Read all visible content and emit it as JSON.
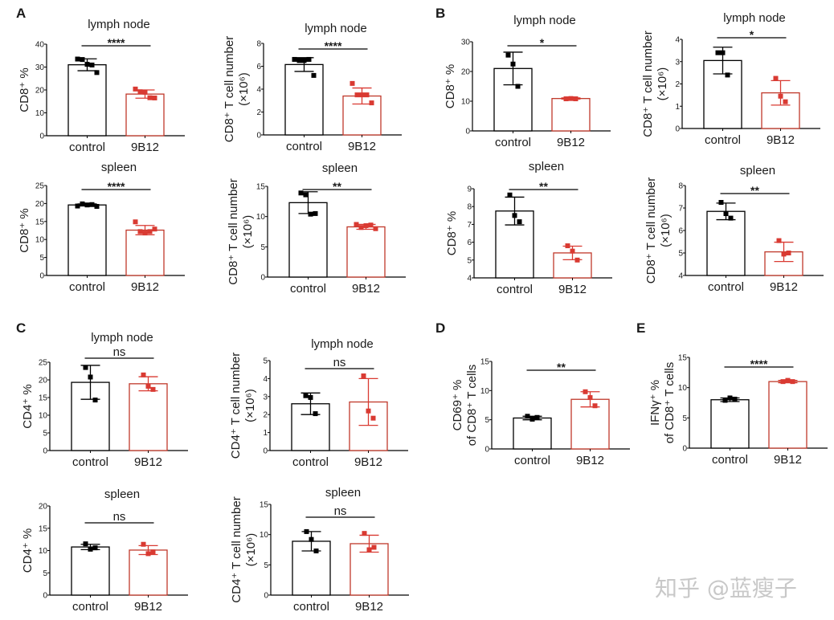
{
  "panel_labels": [
    "A",
    "B",
    "C",
    "D",
    "E"
  ],
  "watermark": "知乎 @蓝瘦子",
  "colors": {
    "control": "#000000",
    "treated": "#d93a32",
    "treated_bar": "#c0392b"
  },
  "chart_data": [
    {
      "type": "bar",
      "panel": "A",
      "title": "lymph node",
      "ylabel": [
        "CD8⁺ %"
      ],
      "ylim": [
        0,
        40
      ],
      "yticks": [
        0,
        10,
        20,
        30,
        40
      ],
      "categories": [
        "control",
        "9B12"
      ],
      "series": [
        {
          "mean": 31,
          "sd": 2.6,
          "points": [
            33.5,
            33.3,
            31.2,
            30.9,
            27.6
          ]
        },
        {
          "mean": 18.2,
          "sd": 1.8,
          "points": [
            20.4,
            19.2,
            19.0,
            16.6,
            16.5
          ]
        }
      ],
      "significance": "****"
    },
    {
      "type": "bar",
      "panel": "A",
      "title": "lymph node",
      "ylabel": [
        "CD8⁺ T cell number",
        "(×10⁶)"
      ],
      "ylim": [
        0,
        8
      ],
      "yticks": [
        0,
        2,
        4,
        6,
        8
      ],
      "categories": [
        "control",
        "9B12"
      ],
      "series": [
        {
          "mean": 6.15,
          "sd": 0.6,
          "points": [
            6.6,
            6.5,
            6.5,
            6.6,
            5.2
          ]
        },
        {
          "mean": 3.4,
          "sd": 0.7,
          "points": [
            4.5,
            3.5,
            3.5,
            3.5,
            2.8
          ]
        }
      ],
      "significance": "****"
    },
    {
      "type": "bar",
      "panel": "A",
      "title": "spleen",
      "ylabel": [
        "CD8⁺ %"
      ],
      "ylim": [
        0,
        25
      ],
      "yticks": [
        0,
        5,
        10,
        15,
        20,
        25
      ],
      "categories": [
        "control",
        "9B12"
      ],
      "series": [
        {
          "mean": 19.6,
          "sd": 0.3,
          "points": [
            19.3,
            19.9,
            19.6,
            19.7,
            19.2
          ]
        },
        {
          "mean": 12.6,
          "sd": 1.3,
          "points": [
            14.9,
            12.2,
            11.8,
            12.2,
            12.9
          ]
        }
      ],
      "significance": "****"
    },
    {
      "type": "bar",
      "panel": "A",
      "title": "spleen",
      "ylabel": [
        "CD8⁺ T cell number",
        "(×10⁶)"
      ],
      "ylim": [
        0,
        15
      ],
      "yticks": [
        0,
        5,
        10,
        15
      ],
      "categories": [
        "control",
        "9B12"
      ],
      "series": [
        {
          "mean": 12.3,
          "sd": 1.8,
          "points": [
            13.9,
            13.6,
            10.4,
            10.5
          ]
        },
        {
          "mean": 8.3,
          "sd": 0.4,
          "points": [
            8.7,
            8.2,
            8.5,
            8.6,
            8.0
          ]
        }
      ],
      "significance": "**"
    },
    {
      "type": "bar",
      "panel": "B",
      "title": "lymph node",
      "ylabel": [
        "CD8⁺ %"
      ],
      "ylim": [
        0,
        30
      ],
      "yticks": [
        0,
        10,
        20,
        30
      ],
      "categories": [
        "control",
        "9B12"
      ],
      "series": [
        {
          "mean": 21,
          "sd": 5.5,
          "points": [
            25.5,
            22.5,
            15
          ]
        },
        {
          "mean": 10.9,
          "sd": 0.2,
          "points": [
            10.8,
            10.9,
            10.8
          ]
        }
      ],
      "significance": "*"
    },
    {
      "type": "bar",
      "panel": "B",
      "title": "lymph node",
      "ylabel": [
        "CD8⁺ T cell number",
        "(×10⁶)"
      ],
      "ylim": [
        0,
        4
      ],
      "yticks": [
        0,
        1,
        2,
        3,
        4
      ],
      "categories": [
        "control",
        "9B12"
      ],
      "series": [
        {
          "mean": 3.05,
          "sd": 0.6,
          "points": [
            3.4,
            3.4,
            2.4
          ]
        },
        {
          "mean": 1.6,
          "sd": 0.55,
          "points": [
            2.25,
            1.45,
            1.2
          ]
        }
      ],
      "significance": "*"
    },
    {
      "type": "bar",
      "panel": "B",
      "title": "spleen",
      "ylabel": [
        "CD8⁺ %"
      ],
      "ylim": [
        4,
        9
      ],
      "yticks": [
        4,
        5,
        6,
        7,
        8,
        9
      ],
      "categories": [
        "control",
        "9B12"
      ],
      "series": [
        {
          "mean": 7.75,
          "sd": 0.78,
          "points": [
            8.65,
            7.5,
            7.15
          ]
        },
        {
          "mean": 5.4,
          "sd": 0.38,
          "points": [
            5.8,
            5.5,
            5.0
          ]
        }
      ],
      "significance": "**"
    },
    {
      "type": "bar",
      "panel": "B",
      "title": "spleen",
      "ylabel": [
        "CD8⁺ T cell number",
        "(×10⁶)"
      ],
      "ylim": [
        4,
        8
      ],
      "yticks": [
        4,
        5,
        6,
        7,
        8
      ],
      "categories": [
        "control",
        "9B12"
      ],
      "series": [
        {
          "mean": 6.85,
          "sd": 0.37,
          "points": [
            7.25,
            6.75,
            6.55
          ]
        },
        {
          "mean": 5.05,
          "sd": 0.43,
          "points": [
            5.55,
            4.95,
            5.0
          ]
        }
      ],
      "significance": "**"
    },
    {
      "type": "bar",
      "panel": "C",
      "title": "lymph node",
      "ylabel": [
        "CD4⁺ %"
      ],
      "ylim": [
        0,
        25
      ],
      "yticks": [
        0,
        5,
        10,
        15,
        20,
        25
      ],
      "categories": [
        "control",
        "9B12"
      ],
      "series": [
        {
          "mean": 19.3,
          "sd": 4.8,
          "points": [
            23.5,
            20.8,
            14.3
          ]
        },
        {
          "mean": 18.9,
          "sd": 2.0,
          "points": [
            21.4,
            18.2,
            17.3
          ]
        }
      ],
      "significance": "ns"
    },
    {
      "type": "bar",
      "panel": "C",
      "title": "lymph node",
      "ylabel": [
        "CD4⁺ T cell number",
        "(×10⁶)"
      ],
      "ylim": [
        0,
        5
      ],
      "yticks": [
        0,
        1,
        2,
        3,
        4,
        5
      ],
      "categories": [
        "control",
        "9B12"
      ],
      "series": [
        {
          "mean": 2.6,
          "sd": 0.6,
          "points": [
            3.05,
            2.95,
            2.05
          ]
        },
        {
          "mean": 2.7,
          "sd": 1.3,
          "points": [
            4.15,
            2.2,
            1.8
          ]
        }
      ],
      "significance": "ns"
    },
    {
      "type": "bar",
      "panel": "C",
      "title": "spleen",
      "ylabel": [
        "CD4⁺ %"
      ],
      "ylim": [
        0,
        20
      ],
      "yticks": [
        0,
        5,
        10,
        15,
        20
      ],
      "categories": [
        "control",
        "9B12"
      ],
      "series": [
        {
          "mean": 10.8,
          "sd": 0.6,
          "points": [
            11.5,
            10.3,
            10.6
          ]
        },
        {
          "mean": 10.1,
          "sd": 1.0,
          "points": [
            11.4,
            9.3,
            9.7
          ]
        }
      ],
      "significance": "ns"
    },
    {
      "type": "bar",
      "panel": "C",
      "title": "spleen",
      "ylabel": [
        "CD4⁺ T cell number",
        "(×10⁶)"
      ],
      "ylim": [
        0,
        15
      ],
      "yticks": [
        0,
        5,
        10,
        15
      ],
      "categories": [
        "control",
        "9B12"
      ],
      "series": [
        {
          "mean": 8.9,
          "sd": 1.6,
          "points": [
            10.5,
            9.2,
            7.3
          ]
        },
        {
          "mean": 8.5,
          "sd": 1.4,
          "points": [
            10.2,
            7.5,
            7.9
          ]
        }
      ],
      "significance": "ns"
    },
    {
      "type": "bar",
      "panel": "D",
      "title": "",
      "ylabel": [
        "CD69⁺ %",
        "of CD8⁺ T cells"
      ],
      "ylim": [
        0,
        15
      ],
      "yticks": [
        0,
        5,
        10,
        15
      ],
      "categories": [
        "control",
        "9B12"
      ],
      "series": [
        {
          "mean": 5.3,
          "sd": 0.3,
          "points": [
            5.6,
            5.1,
            5.4
          ]
        },
        {
          "mean": 8.5,
          "sd": 1.3,
          "points": [
            9.8,
            8.8,
            7.4
          ]
        }
      ],
      "significance": "**"
    },
    {
      "type": "bar",
      "panel": "E",
      "title": "",
      "ylabel": [
        "IFNγ⁺ %",
        "of CD8⁺ T cells"
      ],
      "ylim": [
        0,
        15
      ],
      "yticks": [
        0,
        5,
        10,
        15
      ],
      "categories": [
        "control",
        "9B12"
      ],
      "series": [
        {
          "mean": 8.0,
          "sd": 0.3,
          "points": [
            7.9,
            8.3,
            8.1
          ]
        },
        {
          "mean": 11.0,
          "sd": 0.2,
          "points": [
            11.0,
            11.2,
            11.0
          ]
        }
      ],
      "significance": "****"
    }
  ]
}
